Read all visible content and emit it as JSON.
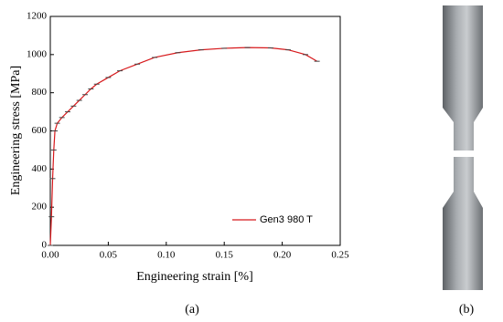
{
  "chart_data": {
    "type": "line",
    "x_label": "Engineering strain [%]",
    "y_label": "Engineering stress [MPa]",
    "x": [
      0,
      0.001,
      0.002,
      0.003,
      0.004,
      0.006,
      0.01,
      0.015,
      0.02,
      0.025,
      0.03,
      0.035,
      0.04,
      0.05,
      0.06,
      0.075,
      0.09,
      0.11,
      0.13,
      0.15,
      0.17,
      0.19,
      0.205,
      0.22,
      0.23
    ],
    "series": [
      {
        "name": "Gen3 980 T",
        "color": "#d7191c",
        "values": [
          0,
          150,
          350,
          500,
          600,
          640,
          670,
          700,
          730,
          760,
          790,
          820,
          845,
          880,
          915,
          950,
          985,
          1010,
          1025,
          1033,
          1037,
          1035,
          1025,
          1000,
          965
        ]
      }
    ],
    "xlim": [
      0,
      0.25
    ],
    "xticks": [
      {
        "value": 0,
        "label": "0.00"
      },
      0.05,
      {
        "value": 0.1,
        "label": "0.10"
      },
      0.15,
      {
        "value": 0.2,
        "label": "0.20"
      },
      0.25
    ],
    "ylim": [
      0,
      1200
    ],
    "yticks": [
      0,
      200,
      400,
      600,
      800,
      1000,
      1200
    ],
    "legend": "lower right",
    "caption_a": "(a)",
    "caption_b": "(b)"
  }
}
